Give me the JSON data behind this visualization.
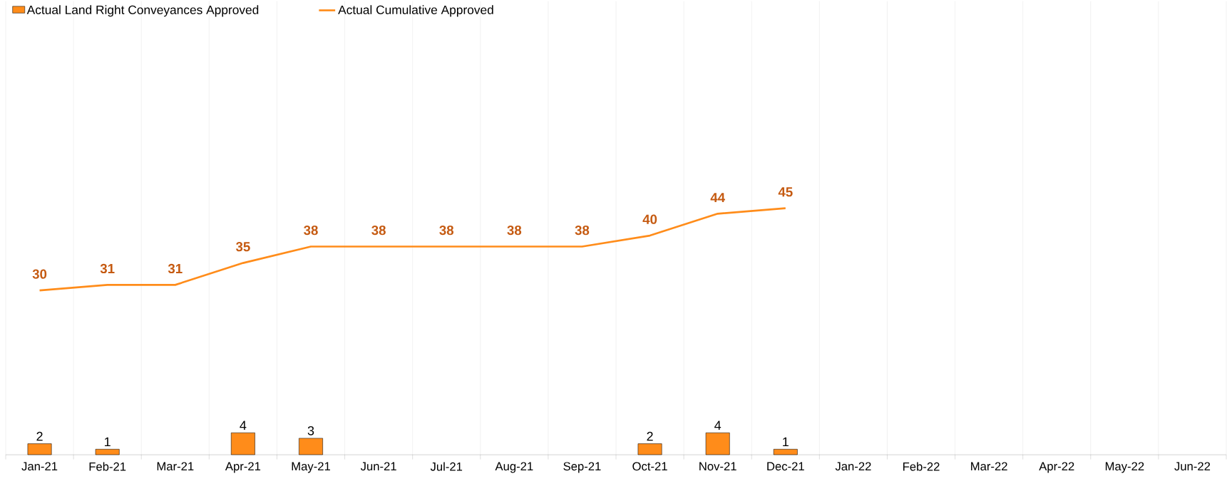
{
  "chart_data": {
    "type": "bar",
    "categories": [
      "Jan-21",
      "Feb-21",
      "Mar-21",
      "Apr-21",
      "May-21",
      "Jun-21",
      "Jul-21",
      "Aug-21",
      "Sep-21",
      "Oct-21",
      "Nov-21",
      "Dec-21",
      "Jan-22",
      "Feb-22",
      "Mar-22",
      "Apr-22",
      "May-22",
      "Jun-22"
    ],
    "series": [
      {
        "name": "Actual Land Right Conveyances Approved",
        "color": "#ff8c1a",
        "values": [
          2,
          1,
          null,
          4,
          3,
          null,
          null,
          null,
          null,
          2,
          4,
          1,
          null,
          null,
          null,
          null,
          null,
          null
        ]
      },
      {
        "name": "Actual Cumulative Approved",
        "type": "line",
        "color": "#ff8c1a",
        "values": [
          30,
          31,
          31,
          35,
          38,
          38,
          38,
          38,
          38,
          40,
          44,
          45,
          null,
          null,
          null,
          null,
          null,
          null
        ]
      }
    ],
    "data_labels": true,
    "legend": "top left",
    "grid": "x",
    "marker": "none"
  }
}
